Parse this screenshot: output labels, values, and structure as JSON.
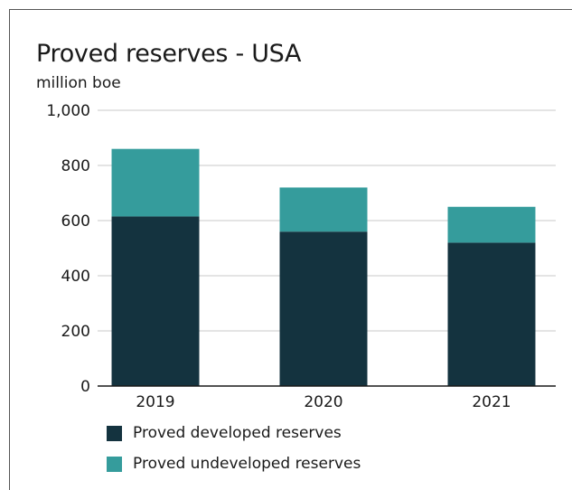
{
  "chart_data": {
    "type": "bar",
    "stacked": true,
    "title": "Proved reserves - USA",
    "subtitle": "million boe",
    "categories": [
      "2019",
      "2020",
      "2021"
    ],
    "series": [
      {
        "name": "Proved developed reserves",
        "color": "#14333f",
        "values": [
          615,
          560,
          520
        ]
      },
      {
        "name": "Proved undeveloped reserves",
        "color": "#359c9c",
        "values": [
          245,
          160,
          130
        ]
      }
    ],
    "ylim": [
      0,
      1000
    ],
    "yticks": [
      "0",
      "200",
      "400",
      "600",
      "800",
      "1,000"
    ],
    "ytick_values": [
      0,
      200,
      400,
      600,
      800,
      1000
    ],
    "grid": true,
    "legend_position": "bottom-left"
  }
}
